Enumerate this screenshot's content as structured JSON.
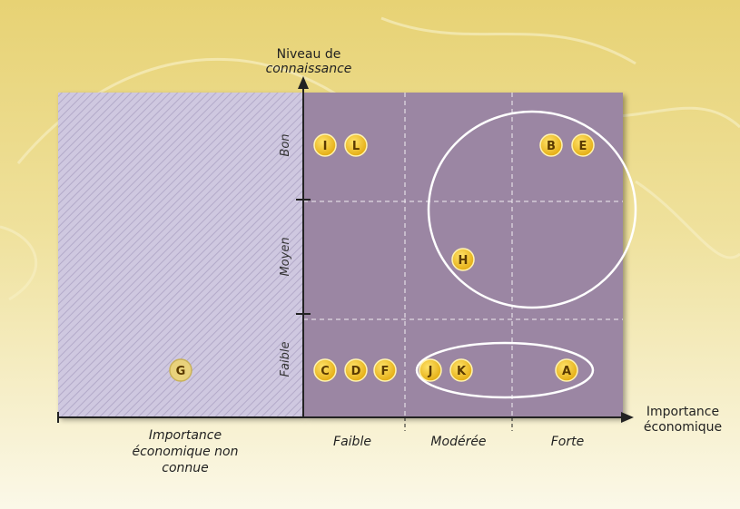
{
  "colors": {
    "background_top": "#e9d77d",
    "background_bottom": "#fbf8e7",
    "matrix_fill": "#9b86a3",
    "unknown_fill": "#c9c2dc",
    "marker_fill": "#f2c21b",
    "marker_faded": "#e9d27c",
    "grid": "#ffffff",
    "axis": "#222222"
  },
  "axes": {
    "y_title_line1": "Niveau de",
    "y_title_line2": "connaissance",
    "x_title_line1": "Importance",
    "x_title_line2": "économique"
  },
  "levels": [
    "Bon",
    "Moyen",
    "Faible"
  ],
  "categories": [
    "Faible",
    "Modérée",
    "Forte"
  ],
  "unknown_category": {
    "line1": "Importance",
    "line2": "économique non",
    "line3": "connue"
  },
  "markers": [
    {
      "label": "I",
      "importance": "Faible",
      "level": "Bon"
    },
    {
      "label": "L",
      "importance": "Faible",
      "level": "Bon"
    },
    {
      "label": "B",
      "importance": "Forte",
      "level": "Bon"
    },
    {
      "label": "E",
      "importance": "Forte",
      "level": "Bon"
    },
    {
      "label": "H",
      "importance": "Modérée",
      "level": "Moyen"
    },
    {
      "label": "C",
      "importance": "Faible",
      "level": "Faible"
    },
    {
      "label": "D",
      "importance": "Faible",
      "level": "Faible"
    },
    {
      "label": "F",
      "importance": "Faible",
      "level": "Faible"
    },
    {
      "label": "J",
      "importance": "Modérée",
      "level": "Faible"
    },
    {
      "label": "K",
      "importance": "Modérée",
      "level": "Faible"
    },
    {
      "label": "A",
      "importance": "Forte",
      "level": "Faible"
    },
    {
      "label": "G",
      "importance": "Importance économique non connue",
      "level": "Faible"
    }
  ],
  "groups": [
    {
      "shape": "circle",
      "encloses": [
        "B",
        "E",
        "H"
      ]
    },
    {
      "shape": "ellipse",
      "encloses": [
        "J",
        "K",
        "A"
      ]
    }
  ]
}
